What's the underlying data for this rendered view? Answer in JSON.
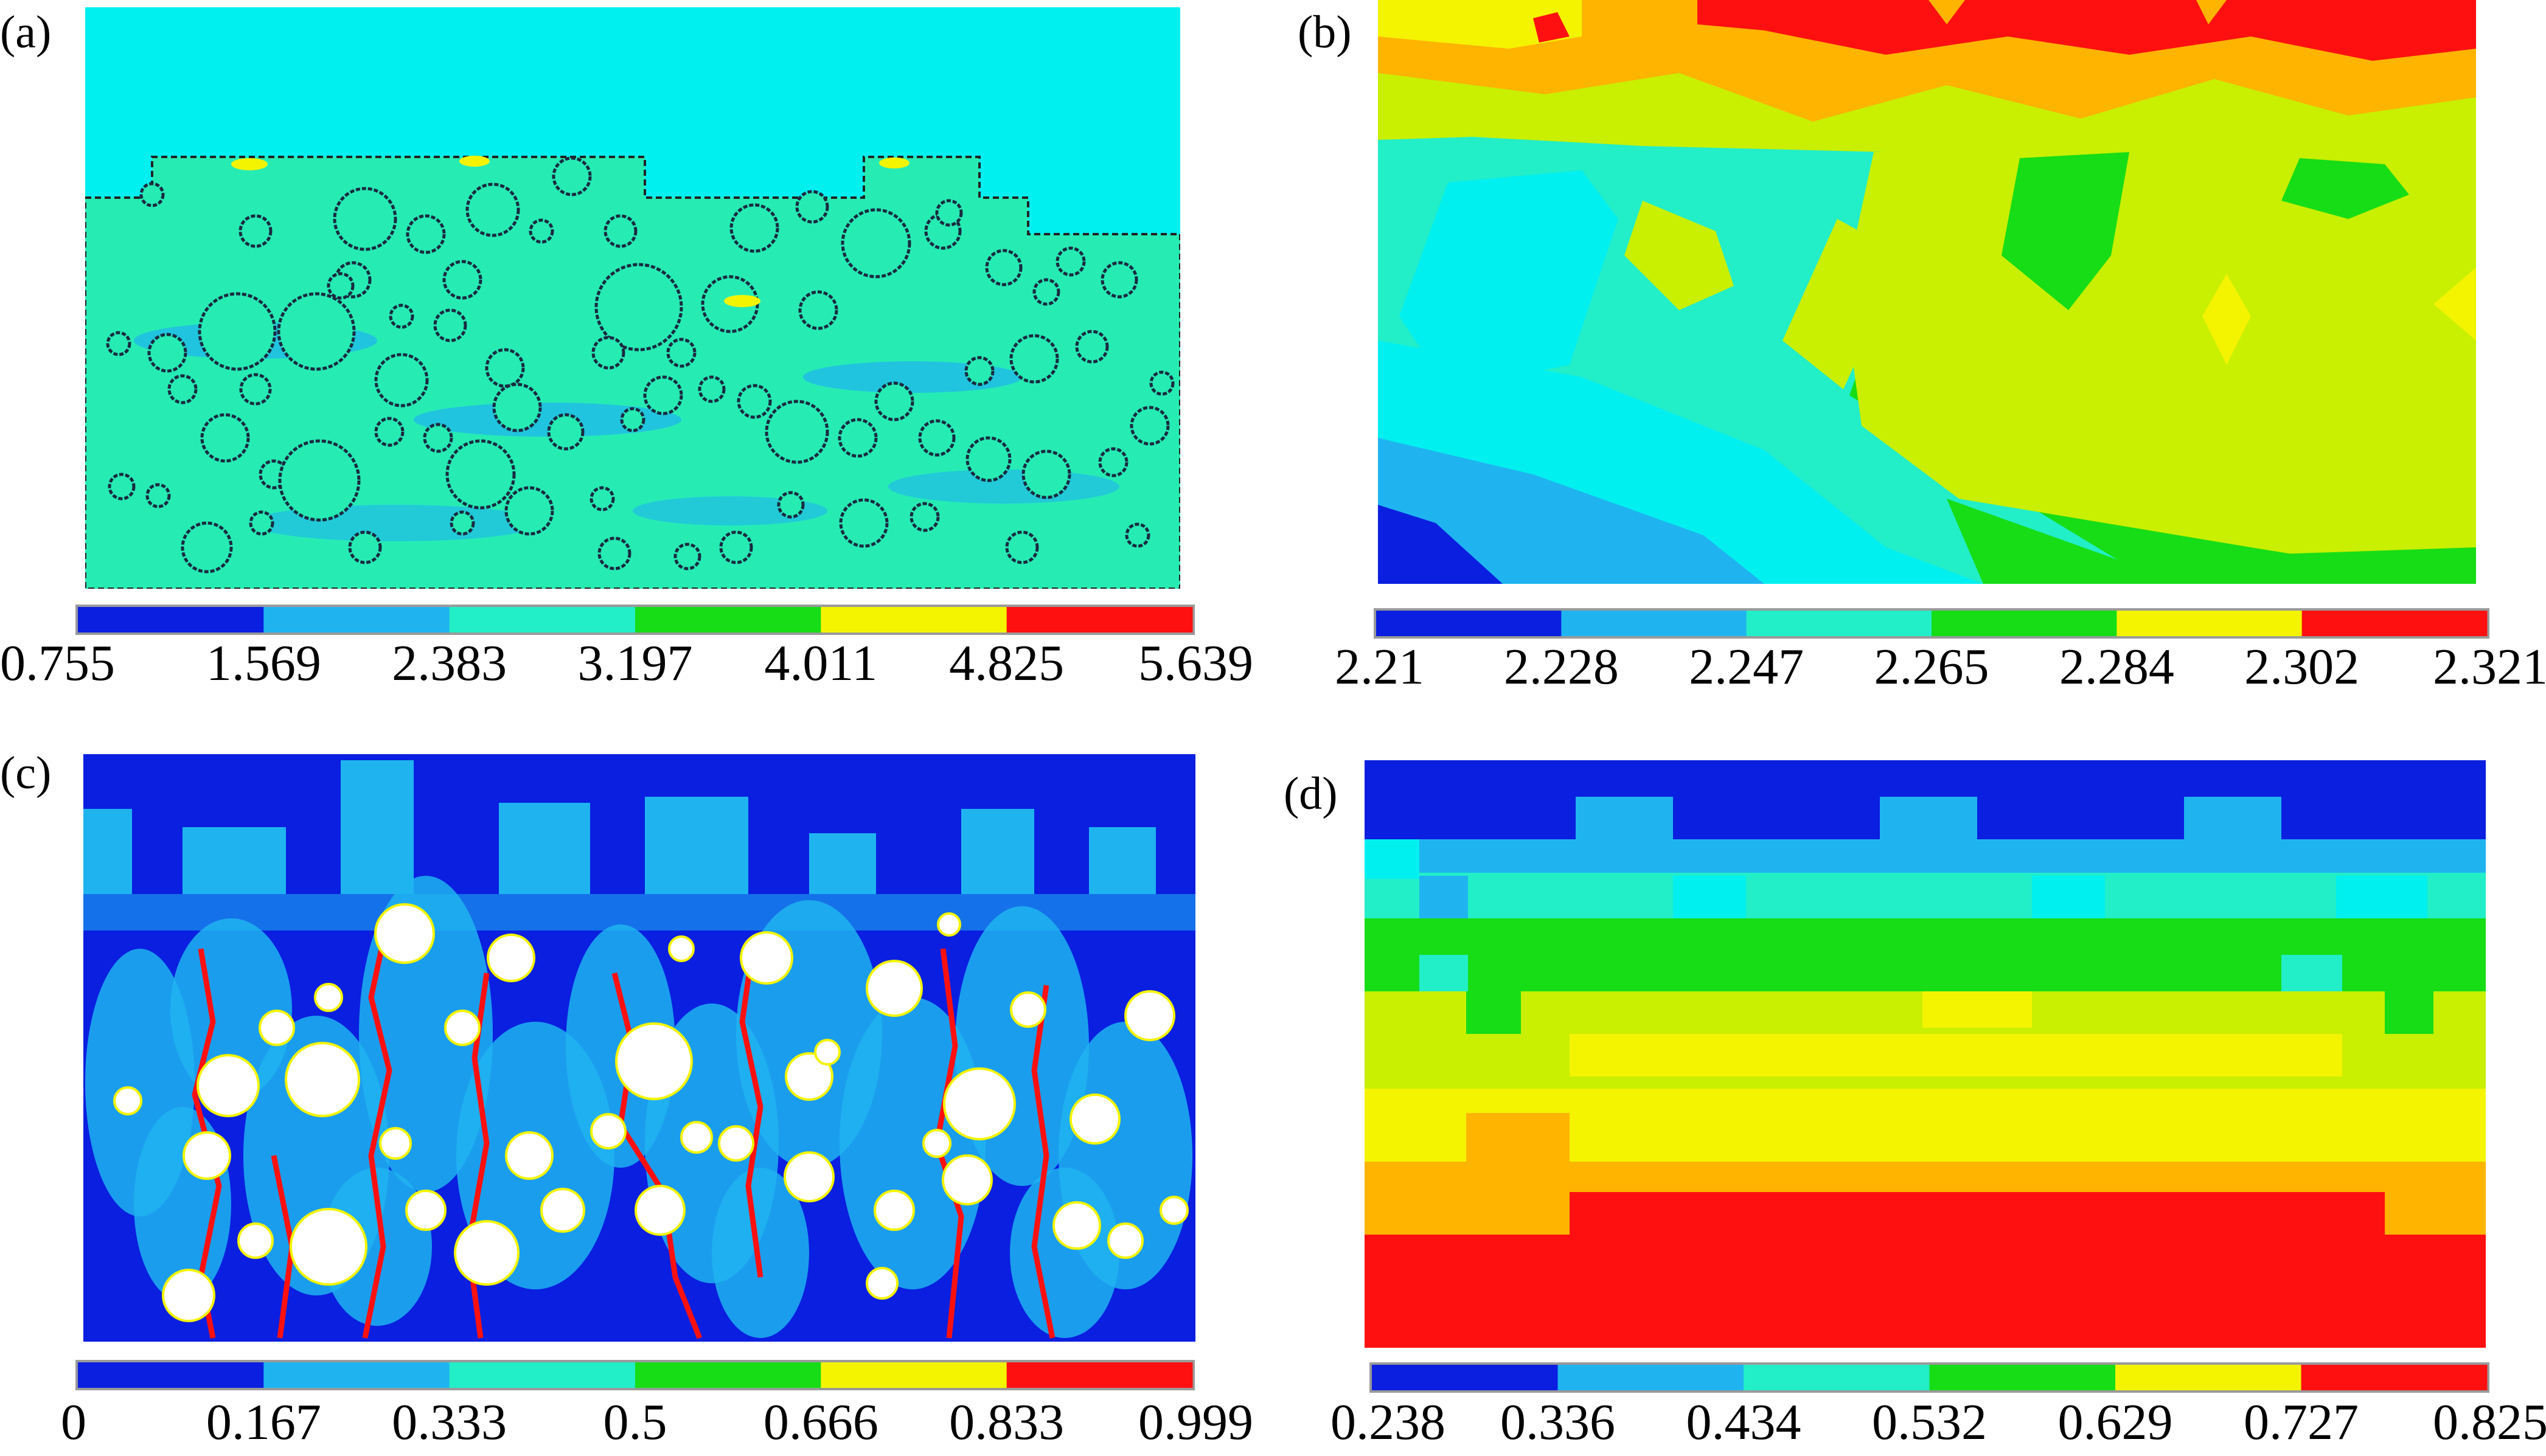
{
  "palette": [
    "#0a1fe0",
    "#1fb4f0",
    "#22eec8",
    "#16dd16",
    "#f4f400",
    "#ff1010"
  ],
  "mid_colors": {
    "cyan": "#00f0f0",
    "orange": "#ffb400",
    "green2": "#30e070"
  },
  "panels": [
    {
      "id": "a",
      "label": "(a)",
      "ticks": [
        "0.755",
        "1.569",
        "2.383",
        "3.197",
        "4.011",
        "4.825",
        "5.639"
      ]
    },
    {
      "id": "b",
      "label": "(b)",
      "ticks": [
        "2.21",
        "2.228",
        "2.247",
        "2.265",
        "2.284",
        "2.302",
        "2.321"
      ]
    },
    {
      "id": "c",
      "label": "(c)",
      "ticks": [
        "0",
        "0.167",
        "0.333",
        "0.5",
        "0.666",
        "0.833",
        "0.999"
      ]
    },
    {
      "id": "d",
      "label": "(d)",
      "ticks": [
        "0.238",
        "0.336",
        "0.434",
        "0.532",
        "0.629",
        "0.727",
        "0.825"
      ]
    }
  ],
  "chart_data": [
    {
      "type": "heatmap",
      "panel": "(a)",
      "colorbar": {
        "ticks": [
          0.755,
          1.569,
          2.383,
          3.197,
          4.011,
          4.825,
          5.639
        ]
      }
    },
    {
      "type": "heatmap",
      "panel": "(b)",
      "colorbar": {
        "ticks": [
          2.21,
          2.228,
          2.247,
          2.265,
          2.284,
          2.302,
          2.321
        ]
      }
    },
    {
      "type": "heatmap",
      "panel": "(c)",
      "colorbar": {
        "ticks": [
          0,
          0.167,
          0.333,
          0.5,
          0.666,
          0.833,
          0.999
        ]
      }
    },
    {
      "type": "heatmap",
      "panel": "(d)",
      "colorbar": {
        "ticks": [
          0.238,
          0.336,
          0.434,
          0.532,
          0.629,
          0.727,
          0.825
        ]
      }
    }
  ]
}
